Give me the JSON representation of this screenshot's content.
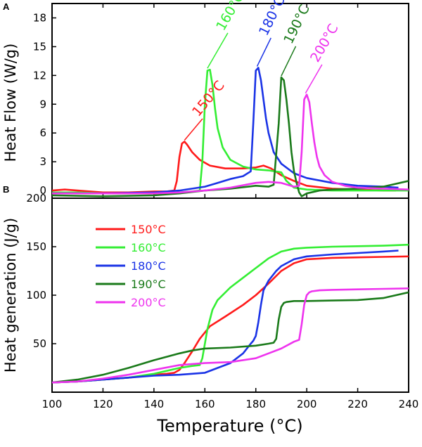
{
  "chart_data": [
    {
      "panel": "A",
      "type": "line",
      "ylabel": "Heat Flow (W/g)",
      "ylim": [
        -0.8,
        19.5
      ],
      "xlim": [
        100,
        240
      ],
      "yticks": [
        0,
        3,
        6,
        9,
        12,
        15,
        18
      ],
      "annotations": [
        "150°C",
        "160°C",
        "180°C",
        "190°C",
        "200°C"
      ],
      "series": [
        {
          "name": "150°C",
          "color": "#ff1a1a",
          "x": [
            100,
            105,
            110,
            120,
            130,
            140,
            145,
            148,
            149,
            150,
            151,
            152,
            153,
            155,
            158,
            162,
            168,
            175,
            180,
            183,
            186,
            190,
            195,
            200,
            210,
            220,
            230,
            235
          ],
          "y": [
            0.0,
            0.1,
            0.0,
            -0.2,
            -0.2,
            -0.1,
            -0.1,
            0.0,
            1.0,
            3.5,
            4.9,
            5.1,
            4.8,
            4.0,
            3.2,
            2.6,
            2.3,
            2.3,
            2.4,
            2.6,
            2.3,
            1.6,
            1.0,
            0.5,
            0.2,
            0.1,
            0.0,
            0.0
          ]
        },
        {
          "name": "160°C",
          "color": "#33ee33",
          "x": [
            100,
            110,
            120,
            130,
            140,
            150,
            155,
            158,
            159,
            160,
            161,
            162,
            163,
            164,
            165,
            167,
            170,
            175,
            180,
            185,
            190,
            192,
            195,
            200,
            210,
            220,
            230,
            240
          ],
          "y": [
            -0.2,
            -0.2,
            -0.3,
            -0.3,
            -0.3,
            -0.2,
            -0.1,
            0.0,
            3.0,
            9.0,
            12.5,
            12.6,
            11.0,
            8.5,
            6.5,
            4.5,
            3.2,
            2.5,
            2.2,
            2.1,
            1.9,
            1.0,
            0.3,
            0.1,
            0.0,
            0.0,
            0.0,
            0.0
          ]
        },
        {
          "name": "180°C",
          "color": "#1a33e6",
          "x": [
            100,
            120,
            140,
            150,
            160,
            165,
            170,
            175,
            178,
            179,
            180,
            181,
            182,
            183,
            184,
            185,
            187,
            190,
            195,
            200,
            210,
            220,
            230,
            236
          ],
          "y": [
            -0.3,
            -0.3,
            -0.2,
            0.0,
            0.4,
            0.8,
            1.2,
            1.5,
            2.0,
            7.0,
            12.5,
            12.8,
            11.5,
            9.5,
            7.5,
            6.0,
            4.0,
            2.8,
            1.8,
            1.3,
            0.8,
            0.5,
            0.4,
            0.3
          ]
        },
        {
          "name": "190°C",
          "color": "#1a7a1a",
          "x": [
            100,
            120,
            140,
            150,
            160,
            170,
            180,
            185,
            187,
            189,
            190,
            191,
            192,
            193,
            194,
            195,
            196,
            197,
            198,
            200,
            205,
            210,
            220,
            230,
            240
          ],
          "y": [
            -0.5,
            -0.6,
            -0.5,
            -0.3,
            0.0,
            0.2,
            0.5,
            0.4,
            0.6,
            7.0,
            11.8,
            11.5,
            9.5,
            7.0,
            4.0,
            2.0,
            0.8,
            -0.2,
            -0.6,
            -0.3,
            0.0,
            0.1,
            0.2,
            0.4,
            1.0
          ]
        },
        {
          "name": "200°C",
          "color": "#ee33ee",
          "x": [
            100,
            120,
            140,
            150,
            160,
            170,
            180,
            185,
            190,
            195,
            197,
            198,
            199,
            200,
            201,
            202,
            203,
            204,
            205,
            207,
            210,
            215,
            220,
            230,
            240
          ],
          "y": [
            -0.3,
            -0.3,
            -0.3,
            -0.2,
            0.0,
            0.3,
            0.8,
            0.9,
            0.8,
            0.4,
            0.5,
            4.0,
            9.5,
            10.0,
            9.2,
            7.0,
            5.0,
            3.5,
            2.5,
            1.6,
            0.9,
            0.5,
            0.3,
            0.2,
            0.1
          ]
        }
      ]
    },
    {
      "panel": "B",
      "type": "line",
      "ylabel": "Heat generation (J/g)",
      "xlabel": "Temperature (°C)",
      "xlim": [
        100,
        240
      ],
      "ylim": [
        0,
        200
      ],
      "xticks": [
        100,
        120,
        140,
        160,
        180,
        200,
        220,
        240
      ],
      "yticks": [
        50,
        100,
        150,
        200
      ],
      "legend": {
        "placement": "upper-left",
        "entries": [
          "150°C",
          "160°C",
          "180°C",
          "190°C",
          "200°C"
        ]
      },
      "series": [
        {
          "name": "150°C",
          "color": "#ff1a1a",
          "x": [
            100,
            110,
            120,
            130,
            140,
            145,
            148,
            150,
            152,
            155,
            158,
            162,
            168,
            175,
            180,
            185,
            190,
            195,
            200,
            210,
            220,
            230,
            240
          ],
          "y": [
            10,
            11,
            13,
            15,
            18,
            19,
            20,
            23,
            30,
            42,
            55,
            68,
            78,
            90,
            100,
            112,
            125,
            133,
            137,
            138.5,
            139,
            139.5,
            140
          ]
        },
        {
          "name": "160°C",
          "color": "#33ee33",
          "x": [
            100,
            110,
            120,
            130,
            140,
            150,
            155,
            158,
            159,
            160,
            161,
            162,
            163,
            165,
            170,
            175,
            180,
            185,
            190,
            195,
            200,
            210,
            220,
            230,
            240
          ],
          "y": [
            10,
            11,
            13,
            15,
            19,
            25,
            27,
            28,
            35,
            50,
            65,
            75,
            85,
            95,
            108,
            118,
            128,
            138,
            145,
            148,
            149,
            150,
            150.5,
            151,
            152
          ]
        },
        {
          "name": "180°C",
          "color": "#1a33e6",
          "x": [
            100,
            110,
            120,
            130,
            140,
            150,
            160,
            170,
            175,
            178,
            179,
            180,
            181,
            182,
            183,
            185,
            188,
            190,
            195,
            200,
            210,
            220,
            230,
            236
          ],
          "y": [
            10,
            11,
            13,
            15,
            17,
            18,
            20,
            30,
            40,
            50,
            53,
            58,
            72,
            90,
            105,
            115,
            125,
            130,
            137,
            140,
            142,
            143.5,
            145,
            146
          ]
        },
        {
          "name": "190°C",
          "color": "#1a7a1a",
          "x": [
            100,
            110,
            120,
            130,
            140,
            150,
            155,
            160,
            170,
            180,
            185,
            187,
            188,
            189,
            190,
            191,
            192,
            195,
            200,
            210,
            220,
            230,
            240
          ],
          "y": [
            10,
            13,
            18,
            25,
            33,
            40,
            43,
            45,
            46,
            48,
            50,
            51,
            55,
            75,
            88,
            92,
            93,
            94,
            94,
            94.5,
            95,
            97,
            103
          ]
        },
        {
          "name": "200°C",
          "color": "#ee33ee",
          "x": [
            100,
            110,
            120,
            130,
            140,
            150,
            160,
            170,
            180,
            190,
            195,
            197,
            198,
            199,
            200,
            201,
            202,
            205,
            210,
            220,
            230,
            240
          ],
          "y": [
            10,
            11,
            14,
            18,
            23,
            28,
            30,
            31,
            35,
            45,
            52,
            54,
            70,
            90,
            100,
            103,
            104,
            105,
            105.5,
            106,
            106.5,
            107
          ]
        }
      ]
    }
  ]
}
